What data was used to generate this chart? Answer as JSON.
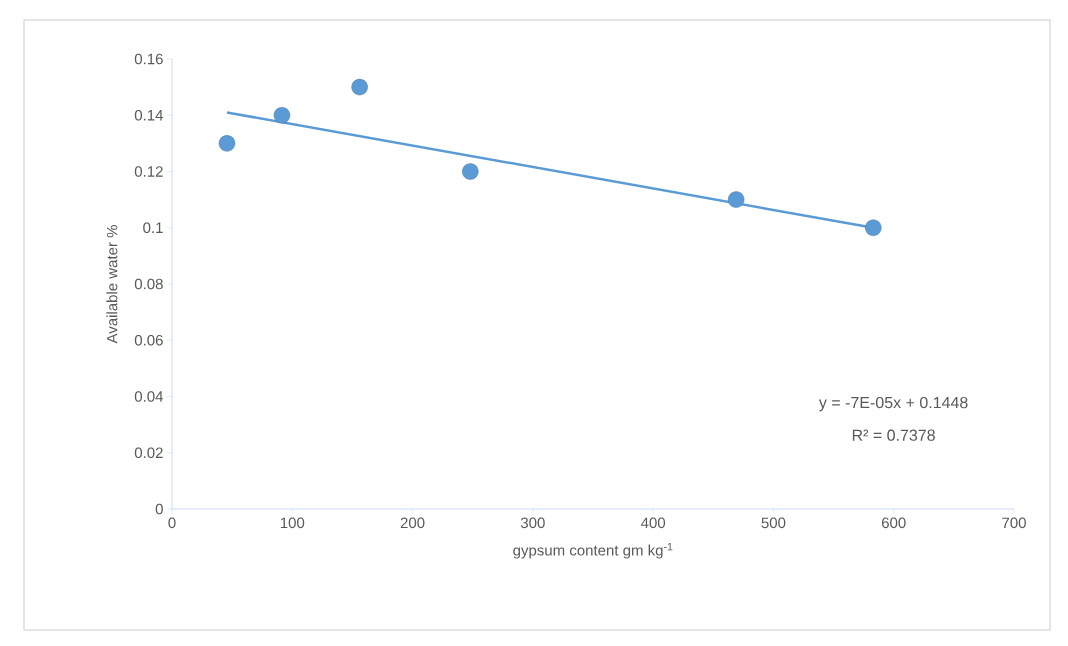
{
  "chart_data": {
    "type": "scatter",
    "xlabel": "gypsum content gm kg$^{-1}$",
    "ylabel": "Available water %",
    "series": [
      {
        "marker": "circle",
        "color": "#5b9bd5",
        "x": [
          45.7,
          91.4,
          156,
          248,
          469,
          583
        ],
        "values": [
          0.13,
          0.14,
          0.15,
          0.12,
          0.11,
          0.1
        ]
      },
      {
        "type": "line",
        "marker": "none",
        "color": "#5b9bd5",
        "x": [
          45.7,
          583
        ],
        "values": [
          0.141,
          0.1
        ]
      }
    ],
    "annotations": [
      "y = -7E-05x + 0.1448",
      "R² = 0.7378"
    ],
    "xlim": [
      0,
      700
    ],
    "xticks": [
      0,
      100,
      200,
      300,
      400,
      500,
      600,
      700
    ],
    "ylim": [
      0,
      0.16
    ],
    "yticks": [
      0,
      0.02,
      0.04,
      0.06,
      0.08,
      0.1,
      0.12,
      0.14,
      0.16
    ],
    "grid": false
  }
}
